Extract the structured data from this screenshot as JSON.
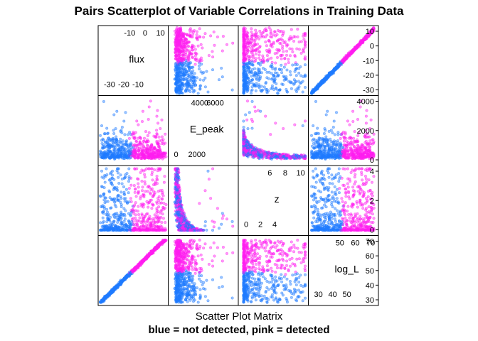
{
  "title": "Pairs Scatterplot of Variable Correlations in Training Data",
  "xlabel": "Scatter Plot Matrix",
  "subtitle": "blue = not detected, pink = detected",
  "colors": {
    "not_detected": "#1E7BFF",
    "detected": "#FF1CF0",
    "frame": "#000000"
  },
  "chart_data": {
    "type": "scatter",
    "variables": [
      {
        "name": "flux",
        "range": [
          -33,
          13
        ],
        "ticks_low": [
          "-30",
          "-20",
          "-10"
        ],
        "ticks_high": [
          "-10",
          "0",
          "10"
        ],
        "ticks_right": [
          "10",
          "0",
          "-10",
          "-20",
          "-30"
        ]
      },
      {
        "name": "E_peak",
        "range": [
          -300,
          7300
        ],
        "ticks_low": [
          "0",
          "2000"
        ],
        "ticks_high": [
          "4000",
          "6000"
        ],
        "ticks_right": [
          "4000",
          "2000",
          "0"
        ]
      },
      {
        "name": "z",
        "range": [
          -0.6,
          10.8
        ],
        "ticks_low": [
          "0",
          "2",
          "4"
        ],
        "ticks_high": [
          "6",
          "8",
          "10"
        ],
        "ticks_right": [
          "4",
          "2",
          "0"
        ]
      },
      {
        "name": "log_L",
        "range": [
          28,
          73
        ],
        "ticks_low": [
          "30",
          "40",
          "50"
        ],
        "ticks_high": [
          "50",
          "60",
          "70"
        ],
        "ticks_right": [
          "70",
          "60",
          "50",
          "40",
          "30"
        ]
      }
    ],
    "groups": [
      {
        "label": "blue = not detected",
        "color": "#1E7BFF"
      },
      {
        "label": "pink = detected",
        "color": "#FF1CF0"
      }
    ],
    "trends": {
      "flux_vs_log_L": "strong positive linear",
      "E_peak_vs_z": "decreasing (inverse)",
      "detected_threshold_flux": -7,
      "detected_threshold_log_L": 49
    },
    "grid": false,
    "legend": "none"
  }
}
